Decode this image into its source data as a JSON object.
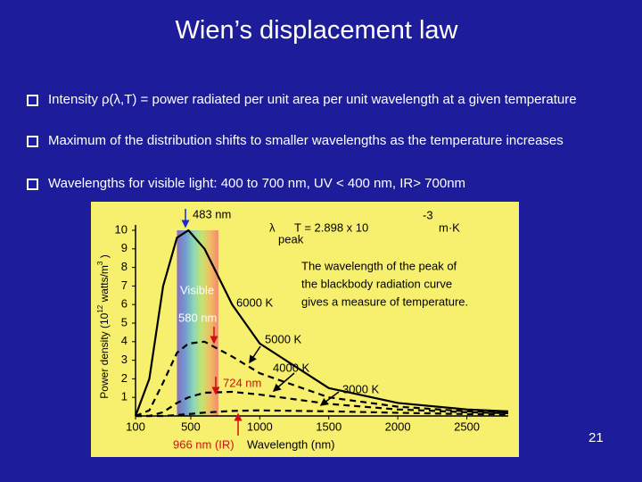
{
  "title": "Wien’s displacement law",
  "bullets": [
    "Intensity ρ(λ,T) = power radiated per unit area per unit wavelength at a given temperature",
    "Maximum of the distribution shifts to smaller wavelengths as the temperature increases",
    "Wavelengths for visible light: 400 to 700 nm, UV < 400 nm, IR> 700nm"
  ],
  "page_number": "21",
  "chart_data": {
    "type": "line",
    "x_label": "Wavelength (nm)",
    "y_label": [
      "Power density (10",
      "12",
      " watts/m",
      "3",
      " )"
    ],
    "equation": [
      "λ",
      "peak",
      "T = 2.898  x 10",
      "-3",
      "m·K"
    ],
    "note": [
      "The wavelength of the peak of",
      "the blackbody radiation curve",
      "gives a measure of temperature."
    ],
    "annotations": [
      "483 nm",
      "Visible",
      "580 nm",
      "6000 K",
      "5000 K",
      "4000 K",
      "3000 K",
      "724 nm",
      "966 nm (IR)"
    ],
    "x": [
      100,
      200,
      300,
      400,
      483,
      600,
      800,
      1000,
      1500,
      2000,
      2500,
      2800
    ],
    "series": [
      {
        "name": "6000 K",
        "color": "#000000",
        "style": "solid",
        "values": [
          0,
          2.0,
          7.0,
          9.6,
          10,
          9.0,
          6.0,
          3.9,
          1.5,
          0.7,
          0.35,
          0.25
        ]
      },
      {
        "name": "5000 K",
        "color": "#000000",
        "style": "dashed",
        "values": [
          0,
          0.3,
          1.8,
          3.4,
          3.9,
          4.0,
          3.2,
          2.3,
          1.0,
          0.5,
          0.25,
          0.18
        ]
      },
      {
        "name": "4000 K",
        "color": "#000000",
        "style": "dashed",
        "values": [
          0,
          0,
          0.2,
          0.7,
          1.0,
          1.25,
          1.3,
          1.15,
          0.65,
          0.35,
          0.2,
          0.15
        ]
      },
      {
        "name": "3000 K",
        "color": "#000000",
        "style": "dashed",
        "values": [
          0,
          0,
          0,
          0.05,
          0.1,
          0.18,
          0.27,
          0.3,
          0.25,
          0.17,
          0.1,
          0.08
        ]
      }
    ],
    "xlim": [
      100,
      2800
    ],
    "ylim": [
      0,
      10
    ],
    "xticks": [
      100,
      500,
      1000,
      1500,
      2000,
      2500
    ],
    "yticks": [
      1,
      2,
      3,
      4,
      5,
      6,
      7,
      8,
      9,
      10
    ],
    "visible_band": [
      400,
      700
    ],
    "background": "#f7ef6e"
  }
}
